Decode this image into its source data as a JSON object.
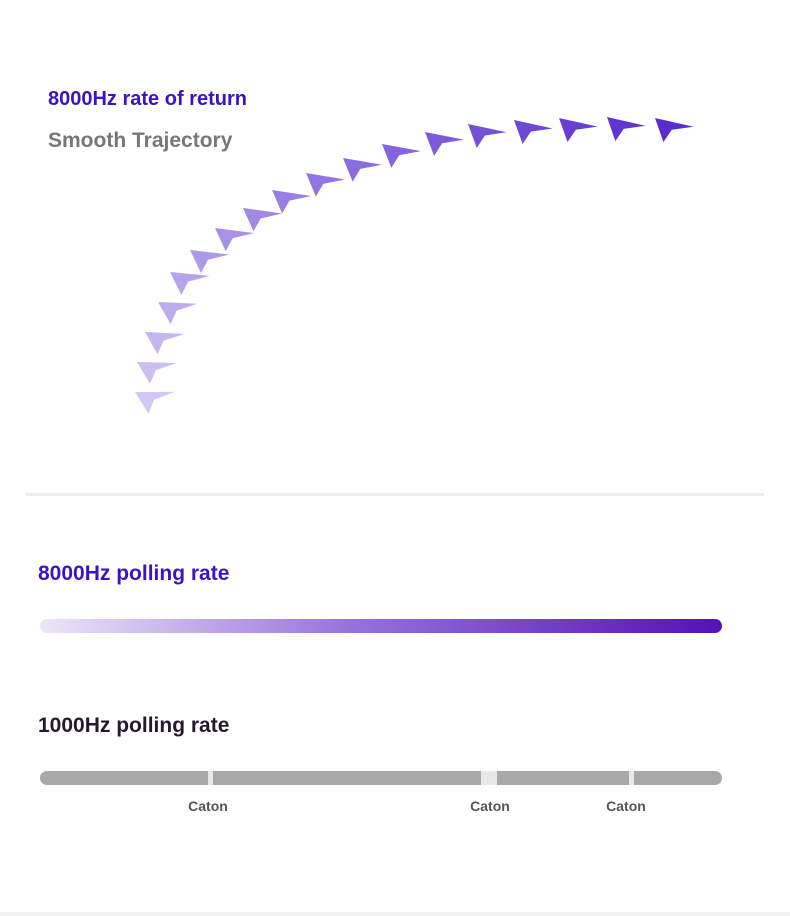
{
  "trajectory": {
    "title": "8000Hz rate of return",
    "subtitle": "Smooth Trajectory",
    "cursor_icon": "arrow-cursor-icon",
    "color_start": "#d2c8f4",
    "color_end": "#5a2cd0"
  },
  "polling_8000": {
    "label": "8000Hz polling rate",
    "bar_start_color": "#ece6f8",
    "bar_end_color": "#5212b6"
  },
  "polling_1000": {
    "label": "1000Hz polling rate",
    "stutter_labels": [
      "Caton",
      "Caton",
      "Caton"
    ],
    "bar_color": "#a8a8a8"
  }
}
